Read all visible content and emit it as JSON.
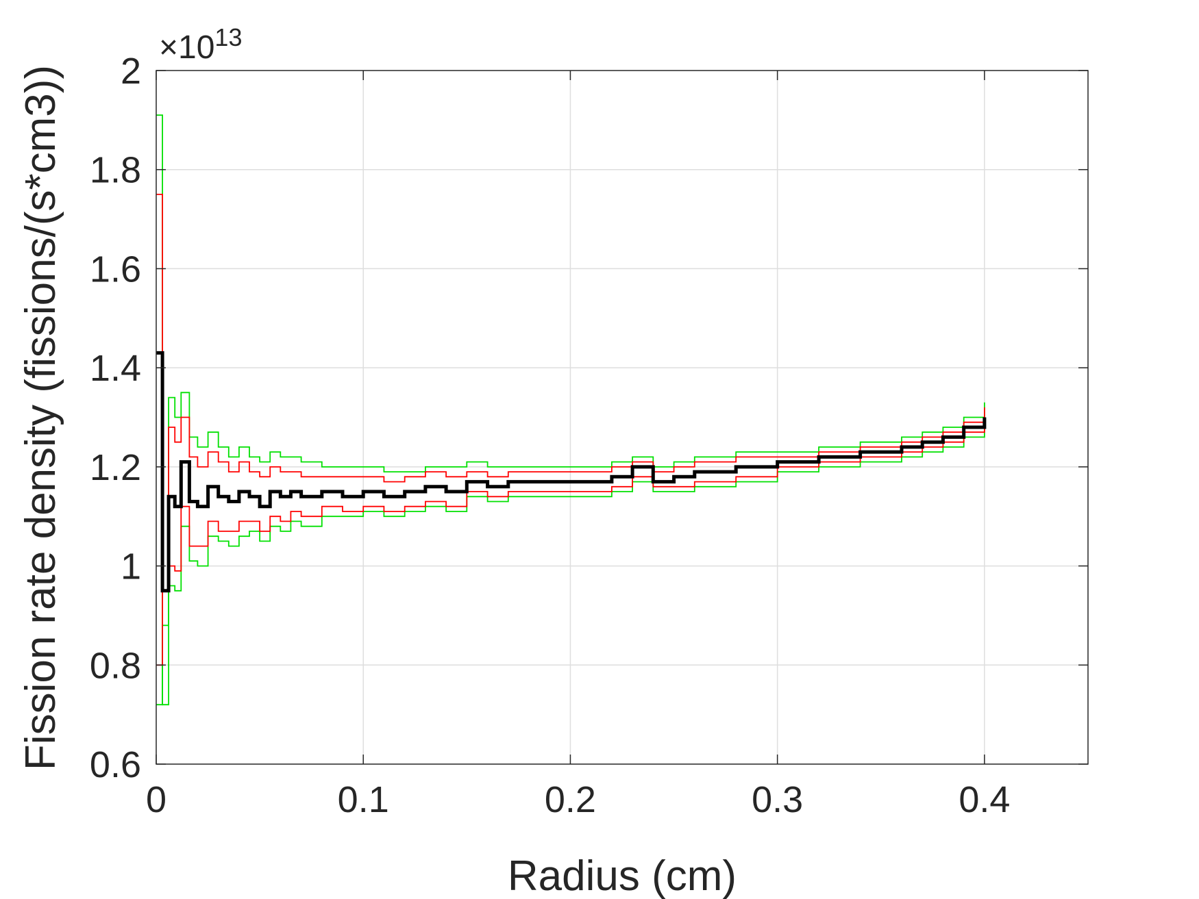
{
  "chart_data": {
    "type": "line",
    "title": "",
    "xlabel": "Radius (cm)",
    "ylabel": "Fission rate density (fissions/(s*cm3))",
    "xlim": [
      0,
      0.45
    ],
    "ylim": [
      0.6,
      2.0
    ],
    "x_ticks": [
      0,
      0.1,
      0.2,
      0.3,
      0.4
    ],
    "x_tick_labels": [
      "0",
      "0.1",
      "0.2",
      "0.3",
      "0.4"
    ],
    "y_ticks": [
      0.6,
      0.8,
      1.0,
      1.2,
      1.4,
      1.6,
      1.8,
      2.0
    ],
    "y_tick_labels": [
      "0.6",
      "0.8",
      "1",
      "1.2",
      "1.4",
      "1.6",
      "1.8",
      "2"
    ],
    "y_exponent_base": "×10",
    "y_exponent_power": "13",
    "grid": true,
    "legend": "none",
    "x": [
      0,
      0.003,
      0.006,
      0.009,
      0.012,
      0.016,
      0.02,
      0.025,
      0.03,
      0.035,
      0.04,
      0.045,
      0.05,
      0.055,
      0.06,
      0.065,
      0.07,
      0.08,
      0.09,
      0.1,
      0.11,
      0.12,
      0.13,
      0.14,
      0.15,
      0.16,
      0.17,
      0.18,
      0.19,
      0.2,
      0.21,
      0.22,
      0.23,
      0.24,
      0.25,
      0.26,
      0.27,
      0.28,
      0.29,
      0.3,
      0.31,
      0.32,
      0.33,
      0.34,
      0.35,
      0.36,
      0.37,
      0.38,
      0.39,
      0.4
    ],
    "series": [
      {
        "color": "#000000",
        "values": [
          1.43,
          0.95,
          1.14,
          1.12,
          1.21,
          1.13,
          1.12,
          1.16,
          1.14,
          1.13,
          1.15,
          1.14,
          1.12,
          1.15,
          1.14,
          1.15,
          1.14,
          1.15,
          1.14,
          1.15,
          1.14,
          1.15,
          1.16,
          1.15,
          1.17,
          1.16,
          1.17,
          1.17,
          1.17,
          1.17,
          1.17,
          1.18,
          1.2,
          1.17,
          1.18,
          1.19,
          1.19,
          1.2,
          1.2,
          1.21,
          1.21,
          1.22,
          1.22,
          1.23,
          1.23,
          1.24,
          1.25,
          1.26,
          1.28,
          1.3
        ]
      },
      {
        "color": "#ff0000",
        "values": [
          1.75,
          0.95,
          1.28,
          1.25,
          1.3,
          1.22,
          1.2,
          1.23,
          1.21,
          1.19,
          1.21,
          1.19,
          1.18,
          1.2,
          1.19,
          1.19,
          1.18,
          1.18,
          1.18,
          1.18,
          1.17,
          1.18,
          1.19,
          1.18,
          1.19,
          1.18,
          1.19,
          1.19,
          1.19,
          1.19,
          1.19,
          1.2,
          1.21,
          1.19,
          1.2,
          1.21,
          1.21,
          1.22,
          1.22,
          1.22,
          1.22,
          1.23,
          1.23,
          1.24,
          1.24,
          1.25,
          1.26,
          1.27,
          1.29,
          1.32
        ]
      },
      {
        "color": "#ff0000",
        "values": [
          0.8,
          0.95,
          1.0,
          0.99,
          1.12,
          1.04,
          1.04,
          1.09,
          1.07,
          1.07,
          1.09,
          1.09,
          1.07,
          1.1,
          1.09,
          1.11,
          1.1,
          1.12,
          1.11,
          1.12,
          1.11,
          1.12,
          1.13,
          1.12,
          1.15,
          1.14,
          1.15,
          1.15,
          1.15,
          1.15,
          1.15,
          1.16,
          1.18,
          1.16,
          1.16,
          1.17,
          1.17,
          1.18,
          1.18,
          1.2,
          1.2,
          1.21,
          1.21,
          1.22,
          1.22,
          1.23,
          1.24,
          1.25,
          1.27,
          1.28
        ]
      },
      {
        "color": "#00e000",
        "values": [
          1.91,
          0.72,
          1.34,
          1.3,
          1.35,
          1.26,
          1.24,
          1.27,
          1.24,
          1.22,
          1.24,
          1.22,
          1.21,
          1.23,
          1.22,
          1.22,
          1.21,
          1.2,
          1.2,
          1.2,
          1.19,
          1.19,
          1.2,
          1.2,
          1.21,
          1.2,
          1.2,
          1.2,
          1.2,
          1.2,
          1.2,
          1.21,
          1.22,
          1.2,
          1.21,
          1.22,
          1.22,
          1.23,
          1.23,
          1.23,
          1.23,
          1.24,
          1.24,
          1.25,
          1.25,
          1.26,
          1.27,
          1.28,
          1.3,
          1.33
        ]
      },
      {
        "color": "#00e000",
        "values": [
          0.72,
          0.88,
          0.96,
          0.95,
          1.08,
          1.01,
          1.0,
          1.06,
          1.05,
          1.04,
          1.06,
          1.07,
          1.05,
          1.08,
          1.07,
          1.09,
          1.08,
          1.1,
          1.1,
          1.11,
          1.1,
          1.11,
          1.12,
          1.11,
          1.14,
          1.13,
          1.14,
          1.14,
          1.14,
          1.14,
          1.14,
          1.15,
          1.17,
          1.15,
          1.15,
          1.16,
          1.16,
          1.17,
          1.17,
          1.19,
          1.19,
          1.2,
          1.2,
          1.21,
          1.21,
          1.22,
          1.23,
          1.24,
          1.26,
          1.28
        ]
      }
    ]
  }
}
